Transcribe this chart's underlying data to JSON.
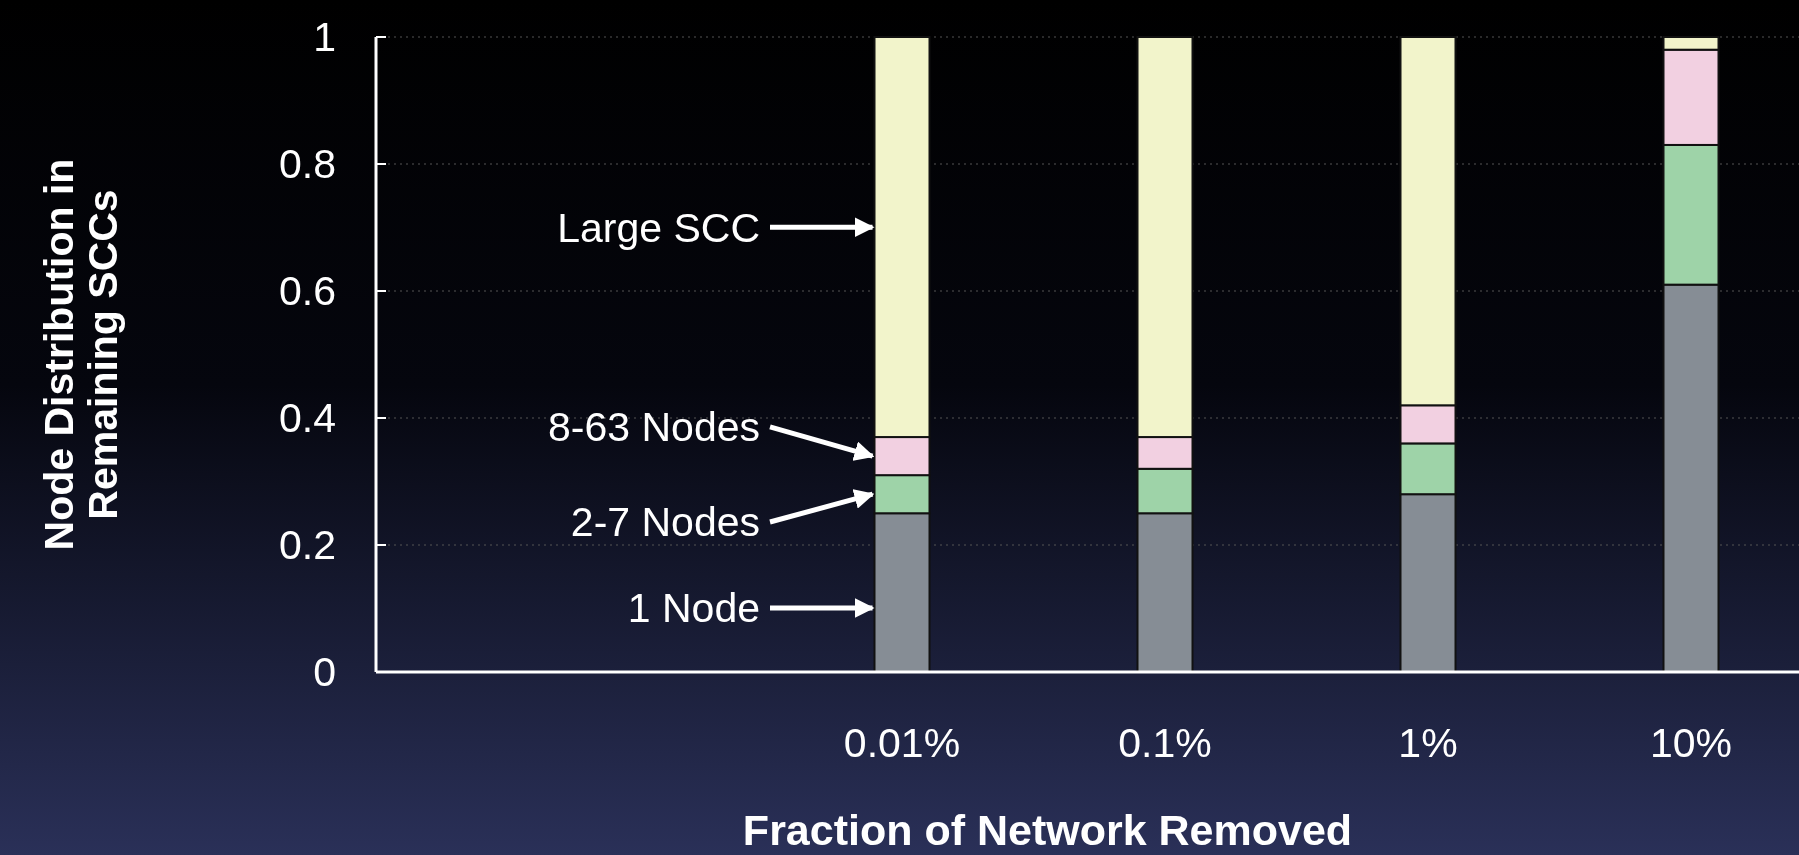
{
  "chart_data": {
    "type": "bar",
    "stacked": true,
    "xlabel": "Fraction of Network Removed",
    "ylabel": "Node Distribution in Remaining SCCs",
    "categories": [
      null,
      null,
      "0.01%",
      "0.1%",
      "1%",
      "10%"
    ],
    "series": [
      {
        "name": "1 Node",
        "color": "#868d95",
        "values": [
          null,
          null,
          0.25,
          0.25,
          0.28,
          0.61
        ]
      },
      {
        "name": "2-7 Nodes",
        "color": "#9ed3a8",
        "values": [
          null,
          null,
          0.06,
          0.07,
          0.08,
          0.22
        ]
      },
      {
        "name": "8-63 Nodes",
        "color": "#f2d0e1",
        "values": [
          null,
          null,
          0.06,
          0.05,
          0.06,
          0.15
        ]
      },
      {
        "name": "Large SCC",
        "color": "#f2f4cb",
        "values": [
          null,
          null,
          0.63,
          0.63,
          0.58,
          0.02
        ]
      }
    ],
    "ylim": [
      0,
      1
    ],
    "yticks": [
      0,
      0.2,
      0.4,
      0.6,
      0.8,
      1
    ],
    "grid": "y"
  }
}
